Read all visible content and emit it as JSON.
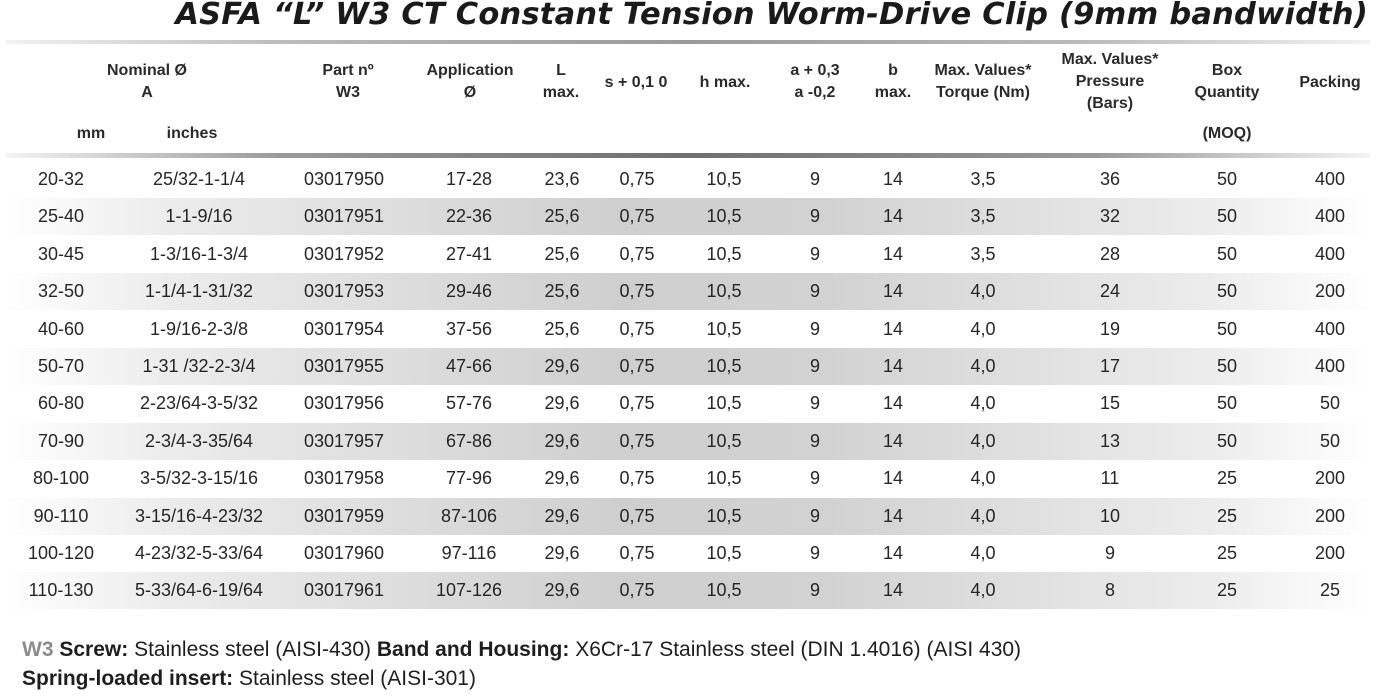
{
  "title": "ASFA “L” W3 CT Constant Tension Worm-Drive Clip (9mm bandwidth)",
  "headers": {
    "nominal": [
      "Nominal Ø",
      "A"
    ],
    "mm": "mm",
    "inches": "inches",
    "part": [
      "Part nº",
      "W3"
    ],
    "application": [
      "Application",
      "Ø"
    ],
    "l": [
      "L",
      "max."
    ],
    "s": "s + 0,1 0",
    "h": "h max.",
    "a": [
      "a + 0,3",
      "a -0,2"
    ],
    "b": [
      "b",
      "max."
    ],
    "torque": [
      "Max. Values*",
      "Torque (Nm)"
    ],
    "pressure": [
      "Max. Values*",
      "Pressure",
      "(Bars)"
    ],
    "box": [
      "Box",
      "Quantity"
    ],
    "moq": "(MOQ)",
    "packing": "Packing"
  },
  "rows": [
    [
      "20-32",
      "25/32-1-1/4",
      "03017950",
      "17-28",
      "23,6",
      "0,75",
      "10,5",
      "9",
      "14",
      "3,5",
      "36",
      "50",
      "400"
    ],
    [
      "25-40",
      "1-1-9/16",
      "03017951",
      "22-36",
      "25,6",
      "0,75",
      "10,5",
      "9",
      "14",
      "3,5",
      "32",
      "50",
      "400"
    ],
    [
      "30-45",
      "1-3/16-1-3/4",
      "03017952",
      "27-41",
      "25,6",
      "0,75",
      "10,5",
      "9",
      "14",
      "3,5",
      "28",
      "50",
      "400"
    ],
    [
      "32-50",
      "1-1/4-1-31/32",
      "03017953",
      "29-46",
      "25,6",
      "0,75",
      "10,5",
      "9",
      "14",
      "4,0",
      "24",
      "50",
      "200"
    ],
    [
      "40-60",
      "1-9/16-2-3/8",
      "03017954",
      "37-56",
      "25,6",
      "0,75",
      "10,5",
      "9",
      "14",
      "4,0",
      "19",
      "50",
      "400"
    ],
    [
      "50-70",
      "1-31 /32-2-3/4",
      "03017955",
      "47-66",
      "29,6",
      "0,75",
      "10,5",
      "9",
      "14",
      "4,0",
      "17",
      "50",
      "400"
    ],
    [
      "60-80",
      "2-23/64-3-5/32",
      "03017956",
      "57-76",
      "29,6",
      "0,75",
      "10,5",
      "9",
      "14",
      "4,0",
      "15",
      "50",
      "50"
    ],
    [
      "70-90",
      "2-3/4-3-35/64",
      "03017957",
      "67-86",
      "29,6",
      "0,75",
      "10,5",
      "9",
      "14",
      "4,0",
      "13",
      "50",
      "50"
    ],
    [
      "80-100",
      "3-5/32-3-15/16",
      "03017958",
      "77-96",
      "29,6",
      "0,75",
      "10,5",
      "9",
      "14",
      "4,0",
      "11",
      "25",
      "200"
    ],
    [
      "90-110",
      "3-15/16-4-23/32",
      "03017959",
      "87-106",
      "29,6",
      "0,75",
      "10,5",
      "9",
      "14",
      "4,0",
      "10",
      "25",
      "200"
    ],
    [
      "100-120",
      "4-23/32-5-33/64",
      "03017960",
      "97-116",
      "29,6",
      "0,75",
      "10,5",
      "9",
      "14",
      "4,0",
      "9",
      "25",
      "200"
    ],
    [
      "110-130",
      "5-33/64-6-19/64",
      "03017961",
      "107-126",
      "29,6",
      "0,75",
      "10,5",
      "9",
      "14",
      "4,0",
      "8",
      "25",
      "25"
    ]
  ],
  "footer": {
    "w3": "W3",
    "screw_label": "Screw:",
    "screw_value": "Stainless steel (AISI-430)",
    "band_label": "Band and Housing:",
    "band_value": "X6Cr-17 Stainless steel (DIN 1.4016) (AISI 430)",
    "spring_label": "Spring-loaded insert:",
    "spring_value": "Stainless steel (AISI-301)"
  }
}
